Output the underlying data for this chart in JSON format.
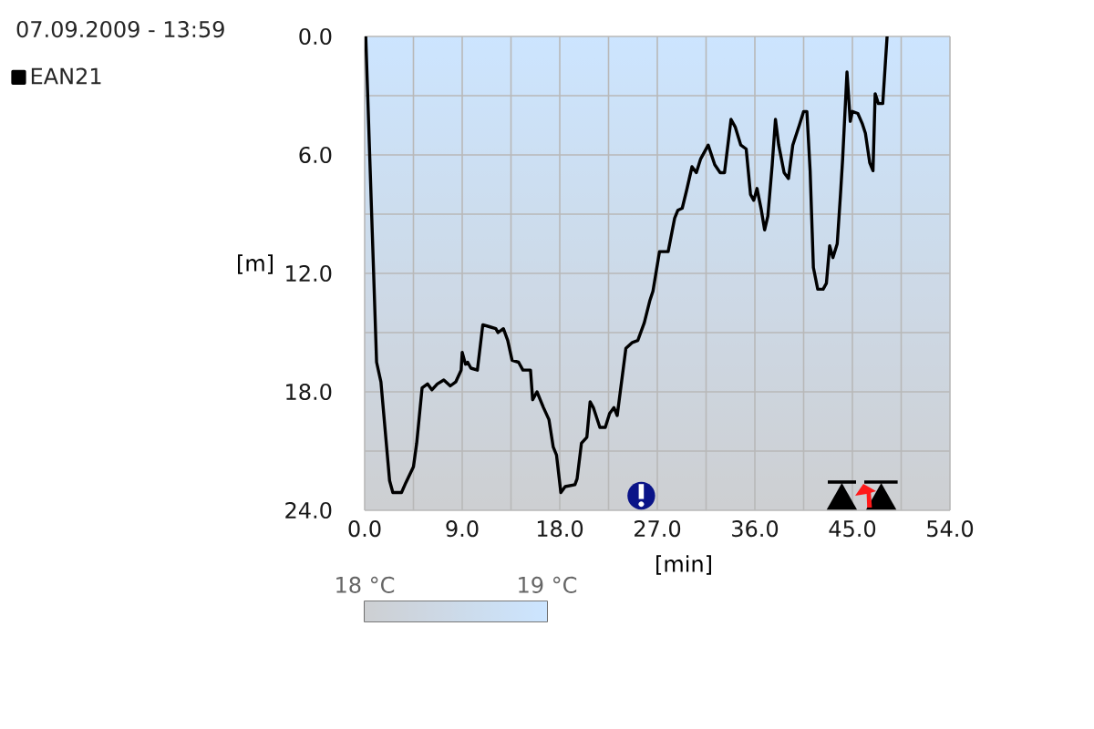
{
  "chart_data": {
    "type": "line",
    "title": "07.09.2009 - 13:59",
    "xlabel": "[min]",
    "ylabel": "[m]",
    "xlim": [
      0,
      54
    ],
    "ylim": [
      24,
      0
    ],
    "xticks": [
      {
        "value": 0,
        "label": "0.0"
      },
      {
        "value": 4.5,
        "label": null
      },
      {
        "value": 9,
        "label": "9.0"
      },
      {
        "value": 13.5,
        "label": null
      },
      {
        "value": 18,
        "label": "18.0"
      },
      {
        "value": 22.5,
        "label": null
      },
      {
        "value": 27,
        "label": "27.0"
      },
      {
        "value": 31.5,
        "label": null
      },
      {
        "value": 36,
        "label": "36.0"
      },
      {
        "value": 40.5,
        "label": null
      },
      {
        "value": 45,
        "label": "45.0"
      },
      {
        "value": 49.5,
        "label": null
      },
      {
        "value": 54,
        "label": "54.0"
      }
    ],
    "yticks": [
      {
        "value": 0,
        "label": "0.0"
      },
      {
        "value": 3,
        "label": null
      },
      {
        "value": 6,
        "label": "6.0"
      },
      {
        "value": 9,
        "label": null
      },
      {
        "value": 12,
        "label": "12.0"
      },
      {
        "value": 15,
        "label": null
      },
      {
        "value": 18,
        "label": "18.0"
      },
      {
        "value": 21,
        "label": null
      },
      {
        "value": 24,
        "label": "24.0"
      }
    ],
    "grid": true,
    "legend": "top left",
    "clim": [
      18,
      19
    ],
    "cticks": [
      {
        "value": 18,
        "label": "18 °C"
      },
      {
        "value": 19,
        "label": "19 °C"
      }
    ],
    "series": [
      {
        "name": "EAN21",
        "color": "#000000",
        "x": [
          0.1,
          1.1,
          1.5,
          2.3,
          2.6,
          3.4,
          3.8,
          4.5,
          4.8,
          5.3,
          5.8,
          6.2,
          6.7,
          7.3,
          7.9,
          8.4,
          8.9,
          9.0,
          9.3,
          9.5,
          9.8,
          10.4,
          10.9,
          11.5,
          12.1,
          12.3,
          12.8,
          13.2,
          13.6,
          14.2,
          14.6,
          15.3,
          15.5,
          15.9,
          16.5,
          17.0,
          17.4,
          17.7,
          18.1,
          18.5,
          19.4,
          19.6,
          20.0,
          20.5,
          20.8,
          21.1,
          21.7,
          22.2,
          22.6,
          23.0,
          23.3,
          23.7,
          24.1,
          24.7,
          25.2,
          25.8,
          26.3,
          26.6,
          27.2,
          28.0,
          28.6,
          28.9,
          29.3,
          29.7,
          30.2,
          30.6,
          31.0,
          31.7,
          32.3,
          32.8,
          33.2,
          33.8,
          34.2,
          34.7,
          35.2,
          35.6,
          35.9,
          36.2,
          36.6,
          36.9,
          37.2,
          37.6,
          37.9,
          38.2,
          38.7,
          39.1,
          39.5,
          40.1,
          40.5,
          40.8,
          41.1,
          41.4,
          41.8,
          42.3,
          42.6,
          42.9,
          43.2,
          43.6,
          43.9,
          44.1,
          44.5,
          44.8,
          45.0,
          45.5,
          45.9,
          46.2,
          46.6,
          46.9,
          47.1,
          47.4,
          47.8,
          48.2
        ],
        "values": [
          0,
          16.5,
          17.5,
          22.5,
          23.1,
          23.1,
          22.6,
          21.8,
          20.6,
          17.8,
          17.6,
          17.9,
          17.6,
          17.4,
          17.7,
          17.5,
          16.9,
          16.0,
          16.6,
          16.5,
          16.8,
          16.9,
          14.6,
          14.7,
          14.8,
          15.0,
          14.8,
          15.4,
          16.4,
          16.5,
          16.9,
          16.9,
          18.4,
          18.0,
          18.8,
          19.4,
          20.8,
          21.2,
          23.1,
          22.8,
          22.7,
          22.4,
          20.6,
          20.3,
          18.5,
          18.8,
          19.8,
          19.8,
          19.1,
          18.8,
          19.2,
          17.5,
          15.8,
          15.5,
          15.4,
          14.5,
          13.4,
          12.9,
          10.9,
          10.9,
          9.2,
          8.8,
          8.7,
          7.8,
          6.6,
          6.9,
          6.2,
          5.5,
          6.5,
          6.9,
          6.9,
          4.2,
          4.6,
          5.5,
          5.7,
          8.0,
          8.3,
          7.7,
          8.8,
          9.8,
          9.1,
          6.5,
          4.2,
          5.5,
          6.9,
          7.2,
          5.5,
          4.5,
          3.8,
          3.8,
          6.8,
          11.7,
          12.8,
          12.8,
          12.5,
          10.6,
          11.2,
          10.5,
          8.0,
          6.2,
          1.8,
          4.3,
          3.8,
          3.9,
          4.4,
          4.9,
          6.4,
          6.8,
          2.9,
          3.4,
          3.4,
          0
        ]
      }
    ]
  }
}
